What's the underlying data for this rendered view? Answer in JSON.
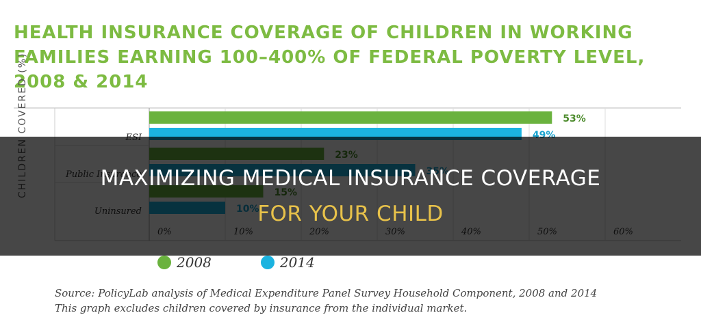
{
  "chart_data": {
    "type": "bar",
    "orientation": "horizontal",
    "title": "HEALTH INSURANCE COVERAGE OF CHILDREN IN WORKING FAMILIES EARNING 100–400% OF FEDERAL POVERTY LEVEL, 2008 & 2014",
    "ylabel": "CHILDREN COVERED (%)",
    "categories": [
      "ESI",
      "Public Insurance",
      "Uninsured"
    ],
    "series": [
      {
        "name": "2008",
        "values": [
          53,
          23,
          15
        ],
        "labels": [
          "53%",
          "23%",
          "15%"
        ],
        "color": "#6ab23e",
        "label_color": "#4e8c2e"
      },
      {
        "name": "2014",
        "values": [
          49,
          35,
          10
        ],
        "labels": [
          "49%",
          "35%",
          "10%"
        ],
        "color": "#1bb3e0",
        "label_color": "#1aa3cf"
      }
    ],
    "x_ticks": [
      "0%",
      "10%",
      "20%",
      "30%",
      "40%",
      "50%",
      "60%"
    ],
    "xlim": [
      0,
      70
    ],
    "legend_position": "bottom",
    "grid": true,
    "source": "Source: PolicyLab analysis of Medical Expenditure Panel Survey Household Component, 2008 and 2014",
    "note": "This graph excludes children covered by insurance from the individual market."
  },
  "banner": {
    "line1": "MAXIMIZING MEDICAL INSURANCE COVERAGE",
    "line2": "FOR YOUR CHILD"
  }
}
